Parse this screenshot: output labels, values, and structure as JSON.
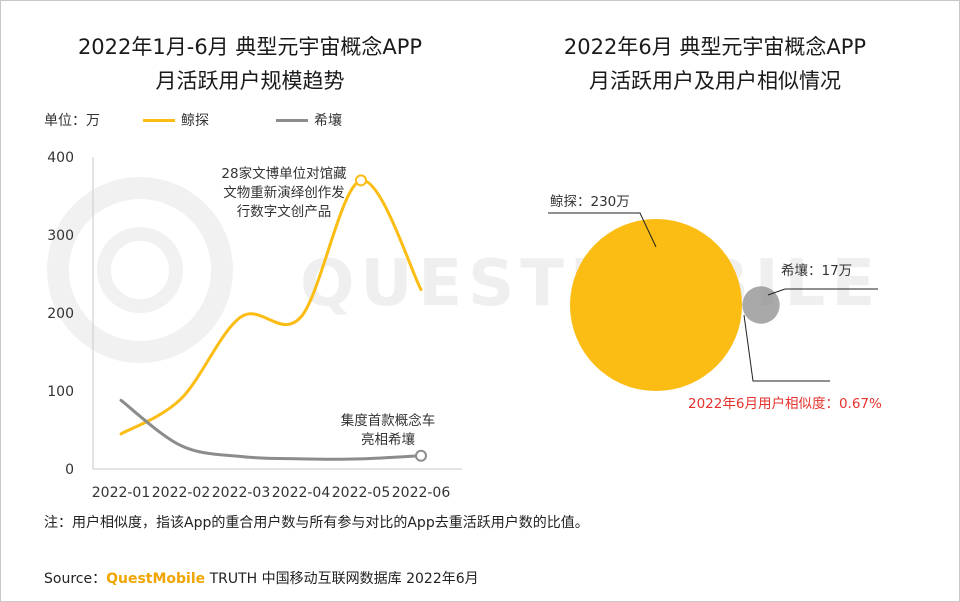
{
  "left_title_line1": "2022年1月-6月 典型元宇宙概念APP",
  "left_title_line2": "月活跃用户规模趋势",
  "right_title_line1": "2022年6月 典型元宇宙概念APP",
  "right_title_line2": "月活跃用户及用户相似情况",
  "unit_label": "单位：万",
  "watermark": "QUESTMOBILE",
  "colors": {
    "jingtan": "#FBBC14",
    "xirang": "#8C8C8C",
    "similarity": "#E6322D"
  },
  "chart_data": [
    {
      "type": "line",
      "categories": [
        "2022-01",
        "2022-02",
        "2022-03",
        "2022-04",
        "2022-05",
        "2022-06"
      ],
      "yticks": [
        "0",
        "100",
        "200",
        "300",
        "400"
      ],
      "ylim": [
        0,
        400
      ],
      "series": [
        {
          "name": "鲸探",
          "values": [
            45,
            90,
            195,
            195,
            370,
            230
          ]
        },
        {
          "name": "希壤",
          "values": [
            88,
            30,
            16,
            13,
            13,
            17
          ]
        }
      ],
      "annotations": [
        {
          "series": 0,
          "index": 4,
          "lines": [
            "28家文博单位对馆藏",
            "文物重新演绎创作发",
            "行数字文创产品"
          ]
        },
        {
          "series": 1,
          "index": 5,
          "lines": [
            "集度首款概念车",
            "亮相希壤"
          ]
        }
      ]
    },
    {
      "type": "bubble",
      "bubbles": [
        {
          "name": "鲸探",
          "value": 230,
          "label": "鲸探：230万"
        },
        {
          "name": "希壤",
          "value": 17,
          "label": "希壤：17万"
        }
      ],
      "similarity_label": "2022年6月用户相似度：0.67%"
    }
  ],
  "note": "注：用户相似度，指该App的重合用户数与所有参与对比的App去重活跃用户数的比值。",
  "source_prefix": "Source：",
  "source_brand": "QuestMobile",
  "source_suffix": " TRUTH 中国移动互联网数据库 2022年6月"
}
